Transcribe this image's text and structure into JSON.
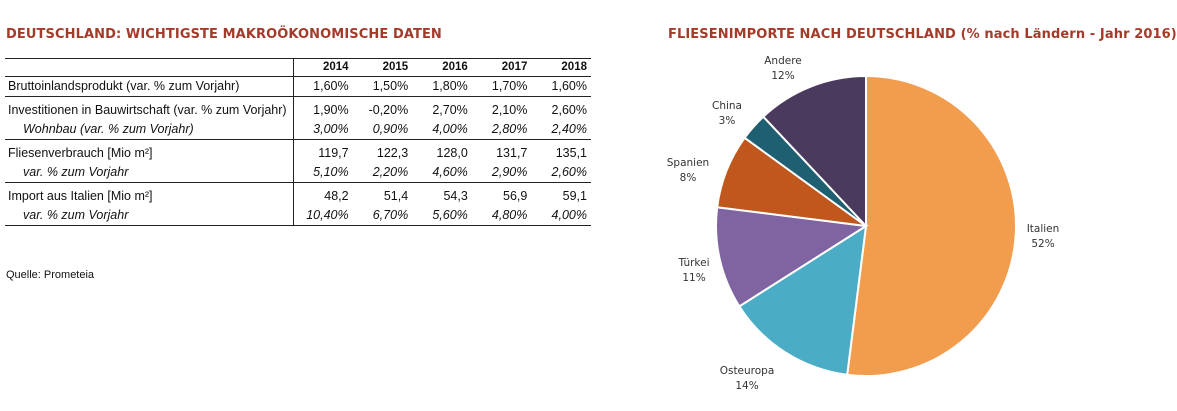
{
  "left": {
    "title": "DEUTSCHLAND: WICHTIGSTE MAKROÖKONOMISCHE DATEN",
    "years": [
      "2014",
      "2015",
      "2016",
      "2017",
      "2018"
    ],
    "rows": [
      {
        "label": "Bruttoinlandsprodukt (var. % zum Vorjahr)",
        "values": [
          "1,60%",
          "1,50%",
          "1,80%",
          "1,70%",
          "1,60%"
        ],
        "sub": false,
        "group_start": true,
        "group_end": true
      },
      {
        "label": "Investitionen in Bauwirtschaft (var. % zum Vorjahr)",
        "values": [
          "1,90%",
          "-0,20%",
          "2,70%",
          "2,10%",
          "2,60%"
        ],
        "sub": false,
        "group_start": true,
        "group_end": false
      },
      {
        "label": "Wohnbau (var. % zum Vorjahr)",
        "values": [
          "3,00%",
          "0,90%",
          "4,00%",
          "2,80%",
          "2,40%"
        ],
        "sub": true,
        "group_start": false,
        "group_end": true
      },
      {
        "label": "Fliesenverbrauch [Mio m²]",
        "values": [
          "119,7",
          "122,3",
          "128,0",
          "131,7",
          "135,1"
        ],
        "sub": false,
        "group_start": true,
        "group_end": false
      },
      {
        "label": "var. % zum Vorjahr",
        "values": [
          "5,10%",
          "2,20%",
          "4,60%",
          "2,90%",
          "2,60%"
        ],
        "sub": true,
        "group_start": false,
        "group_end": true
      },
      {
        "label": "Import aus Italien [Mio m²]",
        "values": [
          "48,2",
          "51,4",
          "54,3",
          "56,9",
          "59,1"
        ],
        "sub": false,
        "group_start": true,
        "group_end": false
      },
      {
        "label": "var. % zum Vorjahr",
        "values": [
          "10,40%",
          "6,70%",
          "5,60%",
          "4,80%",
          "4,00%"
        ],
        "sub": true,
        "group_start": false,
        "group_end": true
      }
    ],
    "source": "Quelle: Prometeia"
  },
  "chart_data": {
    "type": "pie",
    "title": "FLIESENIMPORTE NACH DEUTSCHLAND (% nach Ländern - Jahr 2016)",
    "slices": [
      {
        "name": "Italien",
        "value": 52,
        "label": "52%",
        "color": "#f29c4e"
      },
      {
        "name": "Osteuropa",
        "value": 14,
        "label": "14%",
        "color": "#4bacc6"
      },
      {
        "name": "Türkei",
        "value": 11,
        "label": "11%",
        "color": "#8064a2"
      },
      {
        "name": "Spanien",
        "value": 8,
        "label": "8%",
        "color": "#c0581e"
      },
      {
        "name": "China",
        "value": 3,
        "label": "3%",
        "color": "#1f5f72"
      },
      {
        "name": "Andere",
        "value": 12,
        "label": "12%",
        "color": "#4a3a5e"
      }
    ],
    "start": "top, clockwise"
  }
}
